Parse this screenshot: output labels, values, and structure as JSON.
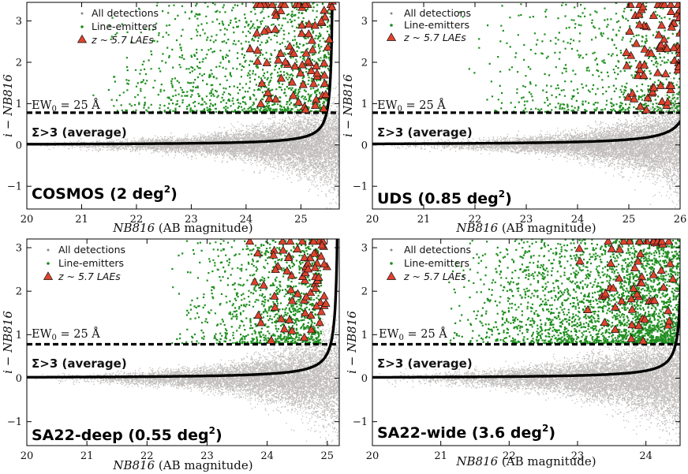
{
  "chart_data": [
    {
      "type": "scatter",
      "field": "COSMOS",
      "area": "2 deg",
      "area_exp": "2",
      "xlim": [
        20,
        25.7
      ],
      "ylim": [
        -1.55,
        3.45
      ],
      "xticks": [
        20,
        21,
        22,
        23,
        24,
        25
      ],
      "yticks": [
        -1,
        0,
        1,
        2,
        3
      ],
      "xlabel_var": "NB816",
      "xlabel_suffix": "(AB magnitude)",
      "ylabel_i": "i",
      "ylabel_var": "NB816",
      "ew_cut": 0.78,
      "ew_label": "EW",
      "ew_sub": "0",
      "ew_value": "= 25 Å",
      "sigma_label": "Σ>3 (average)",
      "sigma_curve": {
        "mag_limit": 25.6,
        "a": 0.18
      },
      "legend": [
        {
          "label": "All detections",
          "marker": "dot",
          "color": "#8c8683"
        },
        {
          "label": "Line-emitters",
          "marker": "dot",
          "color": "#1f8f1f"
        },
        {
          "label": "z ~ 5.7 LAEs",
          "marker": "triangle",
          "color": "#e0432c"
        }
      ],
      "series": [
        {
          "name": "All detections",
          "n": 9000
        },
        {
          "name": "Line-emitters",
          "n": 1300,
          "mag_range": [
            21.0,
            25.6
          ]
        },
        {
          "name": "z ~ 5.7 LAEs",
          "n": 80,
          "mag_range": [
            24.0,
            25.6
          ]
        }
      ]
    },
    {
      "type": "scatter",
      "field": "UDS",
      "area": "0.85 deg",
      "area_exp": "2",
      "xlim": [
        20,
        26
      ],
      "ylim": [
        -1.55,
        3.45
      ],
      "xticks": [
        20,
        21,
        22,
        23,
        24,
        25,
        26
      ],
      "yticks": [
        -1,
        0,
        1,
        2,
        3
      ],
      "xlabel_var": "NB816",
      "xlabel_suffix": "(AB magnitude)",
      "ylabel_i": "i",
      "ylabel_var": "NB816",
      "ew_cut": 0.78,
      "ew_label": "EW",
      "ew_sub": "0",
      "ew_value": "= 25 Å",
      "sigma_label": "Σ>3 (average)",
      "sigma_curve": {
        "mag_limit": 26.3,
        "a": 0.3
      },
      "legend": [
        {
          "label": "All detections",
          "marker": "dot",
          "color": "#8c8683"
        },
        {
          "label": "Line-emitters",
          "marker": "dot",
          "color": "#1f8f1f"
        },
        {
          "label": "z ~ 5.7 LAEs",
          "marker": "triangle",
          "color": "#e0432c"
        }
      ],
      "series": [
        {
          "name": "All detections",
          "n": 8000
        },
        {
          "name": "Line-emitters",
          "n": 650,
          "mag_range": [
            21.5,
            26.0
          ]
        },
        {
          "name": "z ~ 5.7 LAEs",
          "n": 75,
          "mag_range": [
            24.9,
            26.0
          ]
        }
      ]
    },
    {
      "type": "scatter",
      "field": "SA22-deep",
      "area": "0.55 deg",
      "area_exp": "2",
      "xlim": [
        20,
        25.2
      ],
      "ylim": [
        -1.55,
        3.2
      ],
      "xticks": [
        20,
        21,
        22,
        23,
        24,
        25
      ],
      "yticks": [
        -1,
        0,
        1,
        2,
        3
      ],
      "xlabel_var": "NB816",
      "xlabel_suffix": "(AB magnitude)",
      "ylabel_i": "i",
      "ylabel_var": "NB816",
      "ew_cut": 0.78,
      "ew_label": "EW",
      "ew_sub": "0",
      "ew_value": "= 25 Å",
      "sigma_label": "Σ>3 (average)",
      "sigma_curve": {
        "mag_limit": 25.2,
        "a": 0.2
      },
      "legend": [
        {
          "label": "All detections",
          "marker": "dot",
          "color": "#8c8683"
        },
        {
          "label": "Line-emitters",
          "marker": "dot",
          "color": "#1f8f1f"
        },
        {
          "label": "z ~ 5.7 LAEs",
          "marker": "triangle",
          "color": "#e0432c"
        }
      ],
      "series": [
        {
          "name": "All detections",
          "n": 8500
        },
        {
          "name": "Line-emitters",
          "n": 1100,
          "mag_range": [
            22.3,
            24.9
          ]
        },
        {
          "name": "z ~ 5.7 LAEs",
          "n": 70,
          "mag_range": [
            23.6,
            25.0
          ]
        }
      ]
    },
    {
      "type": "scatter",
      "field": "SA22-wide",
      "area": "3.6 deg",
      "area_exp": "2",
      "xlim": [
        20,
        24.5
      ],
      "ylim": [
        -1.55,
        3.2
      ],
      "xticks": [
        20,
        21,
        22,
        23,
        24
      ],
      "yticks": [
        -1,
        0,
        1,
        2,
        3
      ],
      "xlabel_var": "NB816",
      "xlabel_suffix": "(AB magnitude)",
      "ylabel_i": "i",
      "ylabel_var": "NB816",
      "ew_cut": 0.78,
      "ew_label": "EW",
      "ew_sub": "0",
      "ew_value": "= 25 Å",
      "sigma_label": "Σ>3 (average)",
      "sigma_curve": {
        "mag_limit": 24.55,
        "a": 0.16
      },
      "legend": [
        {
          "label": "All detections",
          "marker": "dot",
          "color": "#8c8683"
        },
        {
          "label": "Line-emitters",
          "marker": "dot",
          "color": "#1f8f1f"
        },
        {
          "label": "z ~ 5.7 LAEs",
          "marker": "triangle",
          "color": "#e0432c"
        }
      ],
      "series": [
        {
          "name": "All detections",
          "n": 9000
        },
        {
          "name": "Line-emitters",
          "n": 2600,
          "mag_range": [
            21.0,
            24.5
          ]
        },
        {
          "name": "z ~ 5.7 LAEs",
          "n": 60,
          "mag_range": [
            23.0,
            24.4
          ]
        }
      ]
    }
  ]
}
